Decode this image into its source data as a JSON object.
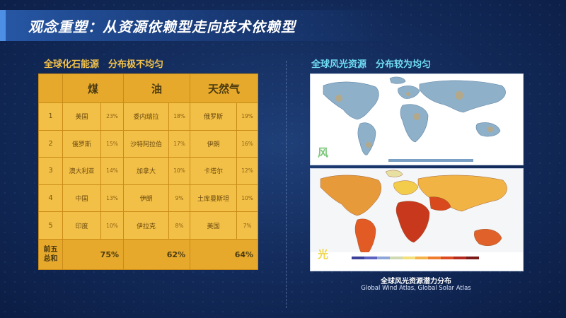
{
  "title": "观念重塑：从资源依赖型走向技术依赖型",
  "left": {
    "subtitle": "全球化石能源　分布极不均匀",
    "table": {
      "headers": [
        "煤",
        "油",
        "天然气"
      ],
      "rows": [
        {
          "idx": "1",
          "coal": "美国",
          "coal_pct": "23%",
          "oil": "委内瑞拉",
          "oil_pct": "18%",
          "gas": "俄罗斯",
          "gas_pct": "19%"
        },
        {
          "idx": "2",
          "coal": "俄罗斯",
          "coal_pct": "15%",
          "oil": "沙特阿拉伯",
          "oil_pct": "17%",
          "gas": "伊朗",
          "gas_pct": "16%"
        },
        {
          "idx": "3",
          "coal": "澳大利亚",
          "coal_pct": "14%",
          "oil": "加拿大",
          "oil_pct": "10%",
          "gas": "卡塔尔",
          "gas_pct": "12%"
        },
        {
          "idx": "4",
          "coal": "中国",
          "coal_pct": "13%",
          "oil": "伊朗",
          "oil_pct": "9%",
          "gas": "土库曼斯坦",
          "gas_pct": "10%"
        },
        {
          "idx": "5",
          "coal": "印度",
          "coal_pct": "10%",
          "oil": "伊拉克",
          "oil_pct": "8%",
          "gas": "美国",
          "gas_pct": "7%"
        }
      ],
      "total_label_1": "前五",
      "total_label_2": "总和",
      "totals": {
        "coal": "75%",
        "oil": "62%",
        "gas": "64%"
      }
    }
  },
  "right": {
    "subtitle": "全球风光资源　分布较为均匀",
    "map_wind_tag": "风",
    "map_solar_tag": "光",
    "caption_cn": "全球风光资源潜力分布",
    "caption_en": "Global Wind Atlas, Global Solar Atlas",
    "colors": {
      "wind_tag": "#7bc67a",
      "solar_tag": "#f0d64a"
    }
  }
}
